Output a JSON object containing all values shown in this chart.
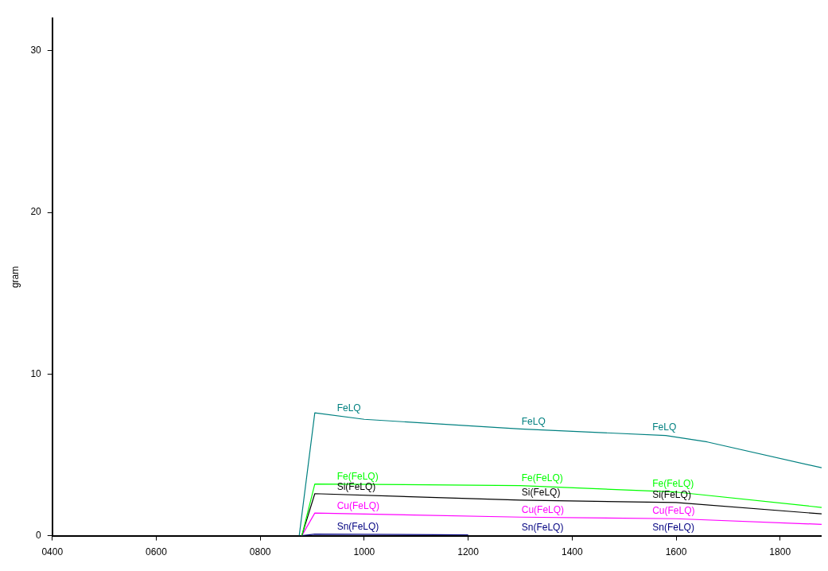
{
  "chart_data": {
    "type": "line",
    "ylabel": "gram",
    "xlim": [
      400,
      1880
    ],
    "ylim": [
      0,
      32
    ],
    "xticks": [
      {
        "value": 400,
        "label": "0400"
      },
      {
        "value": 600,
        "label": "0600"
      },
      {
        "value": 800,
        "label": "0800"
      },
      1000,
      1200,
      1400,
      1600,
      1800
    ],
    "yticks": [
      0,
      10,
      20,
      30
    ],
    "grid": false,
    "legend": false,
    "marker": "none",
    "line_style": "solid",
    "series": [
      {
        "name": "FeLQ",
        "color": "#008080",
        "x": [
          875,
          905,
          1000,
          1300,
          1580,
          1660,
          1880
        ],
        "values": [
          0,
          7.6,
          7.2,
          6.6,
          6.2,
          5.8,
          4.2
        ]
      },
      {
        "name": "Fe(FeLQ)",
        "color": "#00ff00",
        "x": [
          880,
          905,
          1300,
          1600,
          1880
        ],
        "values": [
          0,
          3.2,
          3.1,
          2.7,
          1.75
        ]
      },
      {
        "name": "Si(FeLQ)",
        "color": "#000000",
        "x": [
          880,
          905,
          1300,
          1600,
          1880
        ],
        "values": [
          0,
          2.6,
          2.2,
          2.05,
          1.35
        ]
      },
      {
        "name": "Cu(FeLQ)",
        "color": "#ff00ff",
        "x": [
          880,
          905,
          1300,
          1600,
          1880
        ],
        "values": [
          0,
          1.4,
          1.15,
          1.05,
          0.7
        ]
      },
      {
        "name": "Sn(FeLQ)",
        "color": "#000080",
        "x": [
          880,
          905,
          1200
        ],
        "values": [
          0,
          0.1,
          0.05
        ]
      }
    ]
  }
}
